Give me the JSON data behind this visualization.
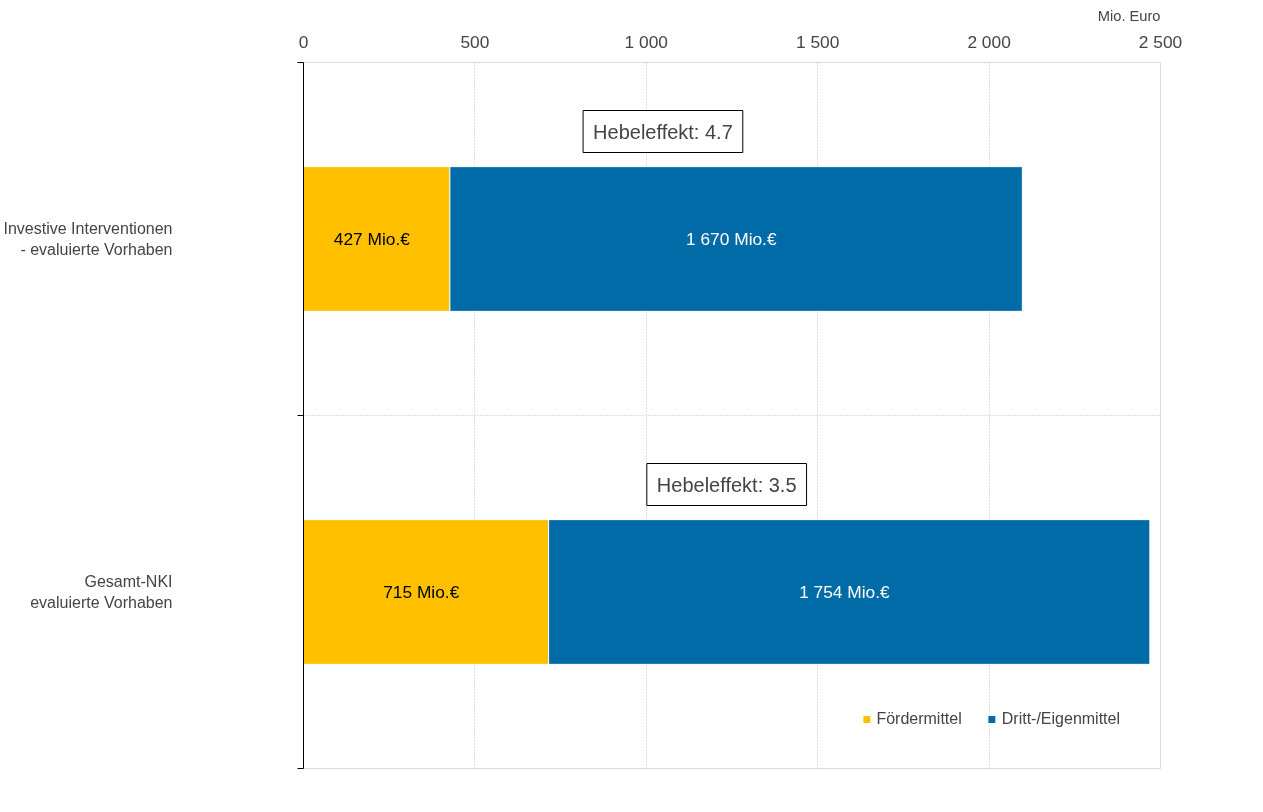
{
  "chart_data": {
    "type": "bar",
    "orientation": "horizontal",
    "stacked": true,
    "categories": [
      "Investive Interventionen - evaluierte Vorhaben",
      "Gesamt-NKI evaluierte Vorhaben"
    ],
    "series": [
      {
        "name": "Fördermittel",
        "color": "#ffc000",
        "values": [
          427,
          715
        ],
        "value_labels": [
          "427   Mio.€",
          "715   Mio.€"
        ]
      },
      {
        "name": "Dritt-/Eigenmittel",
        "color": "#006ba6",
        "values": [
          1670,
          1754
        ],
        "value_labels": [
          "1 670   Mio.€",
          "1 754   Mio.€"
        ]
      }
    ],
    "xlabel": "Mio. Euro",
    "xlim": [
      0,
      2500
    ],
    "xticks": [
      0,
      500,
      {
        "value": 1000,
        "label": "1 000"
      },
      {
        "value": 1500,
        "label": "1 500"
      },
      {
        "value": 2000,
        "label": "2 000"
      },
      {
        "value": 2500,
        "label": "2 500"
      }
    ],
    "annotations": [
      "Hebeleffekt: 4.7",
      "Hebeleffekt: 3.5"
    ],
    "grid": true,
    "legend": "bottom right"
  }
}
